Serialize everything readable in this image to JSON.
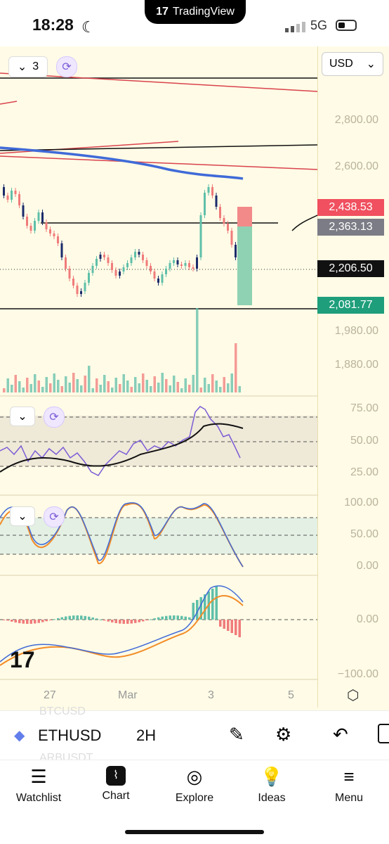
{
  "status_bar": {
    "time": "18:28",
    "network": "5G",
    "brand": "TradingView"
  },
  "chart": {
    "indicator_count": "3",
    "currency": "USD",
    "price_axis": [
      "2,800.00",
      "2,600.00",
      "1,980.00",
      "1,880.00"
    ],
    "price_tags": {
      "red": "2,438.53",
      "gray": "2,363.13",
      "current": "2,206.50",
      "green": "2,081.77"
    },
    "rsi_axis": [
      "75.00",
      "50.00",
      "25.00"
    ],
    "stoch_axis": [
      "100.00",
      "50.00",
      "0.00"
    ],
    "macd_axis": [
      "0.00",
      "−100.00"
    ],
    "time_axis": [
      "27",
      "Mar",
      "3",
      "5"
    ],
    "colors": {
      "up": "#5fbfa9",
      "down": "#f07b7b",
      "dark_candle": "#1a2b6b",
      "ma_blue": "#3f6ad8",
      "red_line": "#d9434d",
      "purple": "#7b5cd6",
      "orange": "#f28c28",
      "tag_red": "#f0505f",
      "tag_gray": "#7c7c86",
      "tag_black": "#111111",
      "tag_green": "#1e9e7b"
    }
  },
  "toolbar": {
    "symbol": "ETHUSD",
    "interval": "2H",
    "ghost_top": "BTCUSD",
    "ghost_bottom": "ARBUSDT"
  },
  "nav": [
    {
      "label": "Watchlist",
      "icon": "watchlist-icon"
    },
    {
      "label": "Chart",
      "icon": "chart-icon"
    },
    {
      "label": "Explore",
      "icon": "compass-icon"
    },
    {
      "label": "Ideas",
      "icon": "lightbulb-icon"
    },
    {
      "label": "Menu",
      "icon": "menu-icon"
    }
  ]
}
